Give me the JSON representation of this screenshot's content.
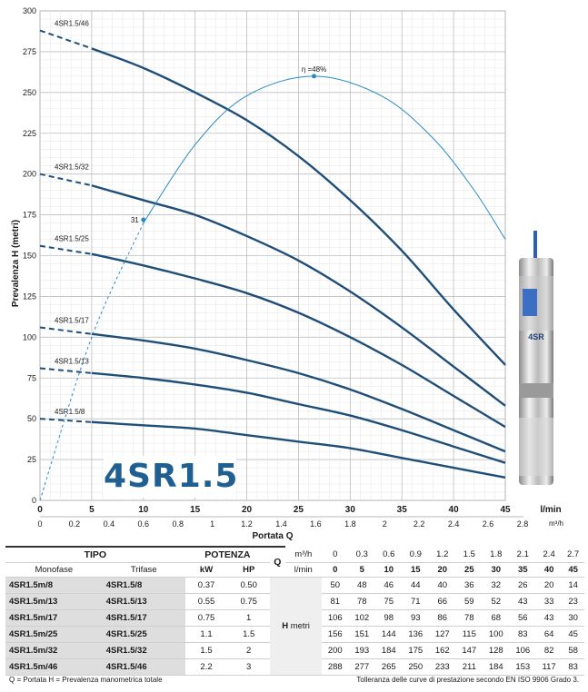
{
  "chart_data": {
    "type": "line",
    "ylabel": "Prevalenza  H  (metri)",
    "xlabel": "Portata  Q",
    "x_unit_top": "l/min",
    "x_unit_bottom": "m³/h",
    "xlim": [
      0,
      45
    ],
    "ylim": [
      0,
      300
    ],
    "x_ticks": [
      0,
      5,
      10,
      15,
      20,
      25,
      30,
      35,
      40,
      45
    ],
    "x_ticks_m3h": [
      "0",
      "0.2",
      "0.4",
      "0.6",
      "0.8",
      "1",
      "1.2",
      "1.4",
      "1.6",
      "1.8",
      "2",
      "2.2",
      "2.4",
      "2.6",
      "2.8"
    ],
    "y_ticks": [
      0,
      25,
      50,
      75,
      100,
      125,
      150,
      175,
      200,
      225,
      250,
      275,
      300
    ],
    "grid": true,
    "series": [
      {
        "name": "4SR1.5/8",
        "dashed_to": 5,
        "x": [
          0,
          5,
          10,
          15,
          20,
          25,
          30,
          35,
          40,
          45
        ],
        "values": [
          50,
          48,
          46,
          44,
          40,
          36,
          32,
          26,
          20,
          14
        ]
      },
      {
        "name": "4SR1.5/13",
        "dashed_to": 5,
        "x": [
          0,
          5,
          10,
          15,
          20,
          25,
          30,
          35,
          40,
          45
        ],
        "values": [
          81,
          78,
          75,
          71,
          66,
          59,
          52,
          43,
          33,
          23
        ]
      },
      {
        "name": "4SR1.5/17",
        "dashed_to": 5,
        "x": [
          0,
          5,
          10,
          15,
          20,
          25,
          30,
          35,
          40,
          45
        ],
        "values": [
          106,
          102,
          98,
          93,
          86,
          78,
          68,
          56,
          43,
          30
        ]
      },
      {
        "name": "4SR1.5/25",
        "dashed_to": 5,
        "x": [
          0,
          5,
          10,
          15,
          20,
          25,
          30,
          35,
          40,
          45
        ],
        "values": [
          156,
          151,
          144,
          136,
          127,
          115,
          100,
          83,
          64,
          45
        ]
      },
      {
        "name": "4SR1.5/32",
        "dashed_to": 5,
        "x": [
          0,
          5,
          10,
          15,
          20,
          25,
          30,
          35,
          40,
          45
        ],
        "values": [
          200,
          193,
          184,
          175,
          162,
          147,
          128,
          106,
          82,
          58
        ]
      },
      {
        "name": "4SR1.5/46",
        "dashed_to": 5,
        "x": [
          0,
          5,
          10,
          15,
          20,
          25,
          30,
          35,
          40,
          45
        ],
        "values": [
          288,
          277,
          265,
          250,
          233,
          211,
          184,
          153,
          117,
          83
        ]
      }
    ],
    "efficiency_curve": {
      "x": [
        0,
        5,
        10,
        15,
        20,
        26.5,
        33,
        38,
        42,
        45
      ],
      "values": [
        0,
        100,
        170,
        218,
        248,
        260,
        248,
        222,
        190,
        160
      ],
      "peak_label": "η =48%",
      "peak": {
        "x": 26.5,
        "y": 260
      },
      "mark_label": "31",
      "mark": {
        "x": 10,
        "y": 172
      }
    },
    "colors": {
      "curve": "#1f4e79",
      "efficiency": "#2a8ac4",
      "grid": "#c8c8c8"
    }
  },
  "badge": {
    "model": "4SR1.5"
  },
  "table": {
    "tipo_label": "TIPO",
    "monofase_label": "Monofase",
    "trifase_label": "Trifase",
    "potenza_label": "POTENZA",
    "kw_label": "kW",
    "hp_label": "HP",
    "q_label": "Q",
    "q_unit_m3h": "m³/h",
    "q_unit_lmin": "l/min",
    "h_label": "H",
    "h_unit": "metri",
    "q_m3h": [
      "0",
      "0.3",
      "0.6",
      "0.9",
      "1.2",
      "1.5",
      "1.8",
      "2.1",
      "2.4",
      "2.7"
    ],
    "q_lmin": [
      "0",
      "5",
      "10",
      "15",
      "20",
      "25",
      "30",
      "35",
      "40",
      "45"
    ],
    "rows": [
      {
        "mono": "4SR1.5m/8",
        "tri": "4SR1.5/8",
        "kw": "0.37",
        "hp": "0.50",
        "h": [
          "50",
          "48",
          "46",
          "44",
          "40",
          "36",
          "32",
          "26",
          "20",
          "14"
        ]
      },
      {
        "mono": "4SR1.5m/13",
        "tri": "4SR1.5/13",
        "kw": "0.55",
        "hp": "0.75",
        "h": [
          "81",
          "78",
          "75",
          "71",
          "66",
          "59",
          "52",
          "43",
          "33",
          "23"
        ]
      },
      {
        "mono": "4SR1.5m/17",
        "tri": "4SR1.5/17",
        "kw": "0.75",
        "hp": "1",
        "h": [
          "106",
          "102",
          "98",
          "93",
          "86",
          "78",
          "68",
          "56",
          "43",
          "30"
        ]
      },
      {
        "mono": "4SR1.5m/25",
        "tri": "4SR1.5/25",
        "kw": "1.1",
        "hp": "1.5",
        "h": [
          "156",
          "151",
          "144",
          "136",
          "127",
          "115",
          "100",
          "83",
          "64",
          "45"
        ]
      },
      {
        "mono": "4SR1.5m/32",
        "tri": "4SR1.5/32",
        "kw": "1.5",
        "hp": "2",
        "h": [
          "200",
          "193",
          "184",
          "175",
          "162",
          "147",
          "128",
          "106",
          "82",
          "58"
        ]
      },
      {
        "mono": "4SR1.5m/46",
        "tri": "4SR1.5/46",
        "kw": "2.2",
        "hp": "3",
        "h": [
          "288",
          "277",
          "265",
          "250",
          "233",
          "211",
          "184",
          "153",
          "117",
          "83"
        ]
      }
    ]
  },
  "footer": {
    "left": "Q = Portata   H = Prevalenza manometrica totale",
    "right": "Tolleranza delle curve di prestazione secondo EN ISO 9906 Grado 3."
  }
}
